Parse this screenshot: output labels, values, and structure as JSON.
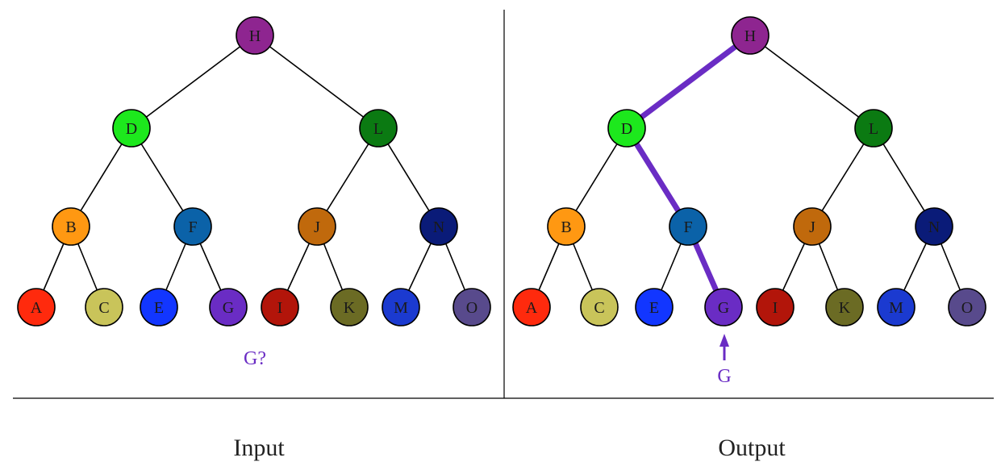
{
  "colors": {
    "edge": "#000000",
    "path": "#6a2cc4",
    "divider": "#000000",
    "query": "#6a2cc4",
    "caption": "#222222"
  },
  "tree": {
    "nodes": [
      {
        "id": "H",
        "label": "H",
        "color": "#8e2590"
      },
      {
        "id": "D",
        "label": "D",
        "color": "#1de81d"
      },
      {
        "id": "L",
        "label": "L",
        "color": "#0b7a12"
      },
      {
        "id": "B",
        "label": "B",
        "color": "#ff9812"
      },
      {
        "id": "F",
        "label": "F",
        "color": "#0b62a8"
      },
      {
        "id": "J",
        "label": "J",
        "color": "#c0690c"
      },
      {
        "id": "N",
        "label": "N",
        "color": "#0a1b78"
      },
      {
        "id": "A",
        "label": "A",
        "color": "#ff2a0d"
      },
      {
        "id": "C",
        "label": "C",
        "color": "#c9c45a"
      },
      {
        "id": "E",
        "label": "E",
        "color": "#1236ff"
      },
      {
        "id": "G",
        "label": "G",
        "color": "#6a2cc4"
      },
      {
        "id": "I",
        "label": "I",
        "color": "#b2150a"
      },
      {
        "id": "K",
        "label": "K",
        "color": "#6b6b24"
      },
      {
        "id": "M",
        "label": "M",
        "color": "#1b3ad0"
      },
      {
        "id": "O",
        "label": "O",
        "color": "#584a8c"
      }
    ],
    "edges": [
      [
        "H",
        "D"
      ],
      [
        "H",
        "L"
      ],
      [
        "D",
        "B"
      ],
      [
        "D",
        "F"
      ],
      [
        "L",
        "J"
      ],
      [
        "L",
        "N"
      ],
      [
        "B",
        "A"
      ],
      [
        "B",
        "C"
      ],
      [
        "F",
        "E"
      ],
      [
        "F",
        "G"
      ],
      [
        "J",
        "I"
      ],
      [
        "J",
        "K"
      ],
      [
        "N",
        "M"
      ],
      [
        "N",
        "O"
      ]
    ]
  },
  "input": {
    "query_text": "G?",
    "caption": "Input"
  },
  "output": {
    "highlighted_path": [
      "H",
      "D",
      "F",
      "G"
    ],
    "result_text": "G",
    "caption": "Output"
  }
}
